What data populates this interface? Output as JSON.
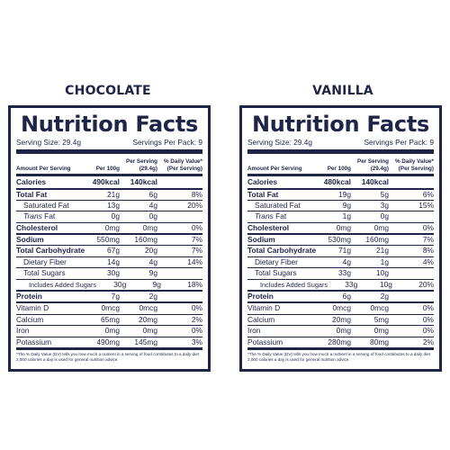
{
  "flavors": [
    "CHOCOLATE",
    "VANILLA"
  ],
  "labels": [
    {
      "title": "Nutrition Facts",
      "serving_size": "Serving Size: 29.4g",
      "servings_per_pack": "Servings Per Pack: 9",
      "header": {
        "amount": "Amount Per Serving",
        "per100": "Per 100g",
        "perServing": "Per Serving (29.4g)",
        "dv": "% Daily Value* (Per Serving)"
      },
      "rows": [
        {
          "label": "Calories",
          "per100": "490kcal",
          "perServing": "140kcal",
          "dv": ""
        },
        {
          "label": "Total Fat",
          "per100": "21g",
          "perServing": "6g",
          "dv": "8%"
        },
        {
          "label": "Saturated Fat",
          "per100": "13g",
          "perServing": "4g",
          "dv": "20%"
        },
        {
          "label_italic": "Trans",
          "label_rest": " Fat",
          "per100": "0g",
          "perServing": "0g",
          "dv": ""
        },
        {
          "label": "Cholesterol",
          "per100": "0mg",
          "perServing": "0mg",
          "dv": "0%"
        },
        {
          "label": "Sodium",
          "per100": "550mg",
          "perServing": "160mg",
          "dv": "7%"
        },
        {
          "label": "Total Carbohydrate",
          "per100": "67g",
          "perServing": "20g",
          "dv": "7%"
        },
        {
          "label": "Dietary Fiber",
          "per100": "14g",
          "perServing": "4g",
          "dv": "14%"
        },
        {
          "label": "Total Sugars",
          "per100": "30g",
          "perServing": "9g",
          "dv": ""
        },
        {
          "label": "Includes Added Sugars",
          "per100": "30g",
          "perServing": "9g",
          "dv": "18%"
        },
        {
          "label": "Protein",
          "per100": "7g",
          "perServing": "2g",
          "dv": ""
        },
        {
          "label": "Vitamin D",
          "per100": "0mcg",
          "perServing": "0mcg",
          "dv": "0%"
        },
        {
          "label": "Calcium",
          "per100": "65mg",
          "perServing": "20mg",
          "dv": "2%"
        },
        {
          "label": "Iron",
          "per100": "0mg",
          "perServing": "0mg",
          "dv": "0%"
        },
        {
          "label": "Potassium",
          "per100": "490mg",
          "perServing": "145mg",
          "dv": "3%"
        }
      ],
      "footnote": "*The % Daily Value (DV) tells you how much a nutrient in a serving of food contributes to a daily diet 2,000 calories a day is used for general nutrition advice."
    },
    {
      "title": "Nutrition Facts",
      "serving_size": "Serving Size: 29.4g",
      "servings_per_pack": "Servings Per Pack: 9",
      "header": {
        "amount": "Amount Per Serving",
        "per100": "Per 100g",
        "perServing": "Per Serving (29.4g)",
        "dv": "% Daily Value* (Per Serving)"
      },
      "rows": [
        {
          "label": "Calories",
          "per100": "480kcal",
          "perServing": "140kcal",
          "dv": ""
        },
        {
          "label": "Total Fat",
          "per100": "19g",
          "perServing": "5g",
          "dv": "6%"
        },
        {
          "label": "Saturated Fat",
          "per100": "9g",
          "perServing": "3g",
          "dv": "15%"
        },
        {
          "label_italic": "Trans",
          "label_rest": " Fat",
          "per100": "1g",
          "perServing": "0g",
          "dv": ""
        },
        {
          "label": "Cholesterol",
          "per100": "0mg",
          "perServing": "0mg",
          "dv": "0%"
        },
        {
          "label": "Sodium",
          "per100": "530mg",
          "perServing": "160mg",
          "dv": "7%"
        },
        {
          "label": "Total Carbohydrate",
          "per100": "71g",
          "perServing": "21g",
          "dv": "8%"
        },
        {
          "label": "Dietary Fiber",
          "per100": "4g",
          "perServing": "1g",
          "dv": "4%"
        },
        {
          "label": "Total Sugars",
          "per100": "33g",
          "perServing": "10g",
          "dv": ""
        },
        {
          "label": "Includes Added Sugars",
          "per100": "33g",
          "perServing": "10g",
          "dv": "20%"
        },
        {
          "label": "Protein",
          "per100": "6g",
          "perServing": "2g",
          "dv": ""
        },
        {
          "label": "Vitamin D",
          "per100": "0mcg",
          "perServing": "0mcg",
          "dv": "0%"
        },
        {
          "label": "Calcium",
          "per100": "20mg",
          "perServing": "5mg",
          "dv": "0%"
        },
        {
          "label": "Iron",
          "per100": "0mg",
          "perServing": "0mg",
          "dv": "0%"
        },
        {
          "label": "Potassium",
          "per100": "280mg",
          "perServing": "80mg",
          "dv": "2%"
        }
      ],
      "footnote": "*The % Daily Value (DV) tells you how much a nutrient in a serving of food contributes to a daily diet 2,000 calories a day is used for general nutrition advice."
    }
  ]
}
